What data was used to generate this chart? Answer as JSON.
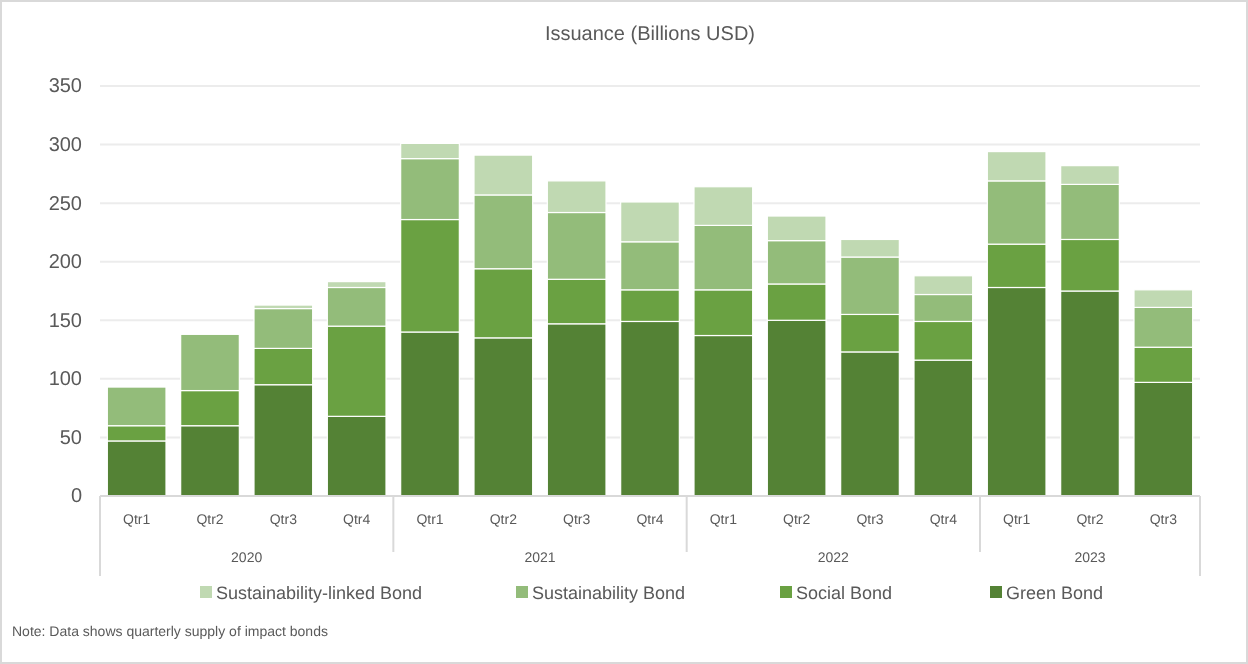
{
  "chart_data": {
    "type": "bar",
    "title": "Issuance (Billions USD)",
    "stacked": true,
    "grid": "y",
    "legend": "bottom",
    "categories": [
      "Qtr1",
      "Qtr2",
      "Qtr3",
      "Qtr4",
      "Qtr1",
      "Qtr2",
      "Qtr3",
      "Qtr4",
      "Qtr1",
      "Qtr2",
      "Qtr3",
      "Qtr4",
      "Qtr1",
      "Qtr2",
      "Qtr3"
    ],
    "ylim": [
      0,
      350
    ],
    "yticks": [
      0,
      50,
      100,
      150,
      200,
      250,
      300,
      350
    ],
    "series": [
      {
        "name": "Green Bond",
        "color": "#548235",
        "values": [
          47,
          60,
          95,
          68,
          140,
          135,
          147,
          149,
          137,
          150,
          123,
          116,
          178,
          175,
          97
        ]
      },
      {
        "name": "Social Bond",
        "color": "#6aa142",
        "values": [
          13,
          30,
          31,
          77,
          96,
          59,
          38,
          27,
          39,
          31,
          32,
          33,
          37,
          44,
          30
        ]
      },
      {
        "name": "Sustainability Bond",
        "color": "#93bc7a",
        "values": [
          33,
          48,
          34,
          33,
          52,
          63,
          57,
          41,
          55,
          37,
          49,
          23,
          54,
          47,
          34
        ]
      },
      {
        "name": "Sustainability-linked Bond",
        "color": "#c0d9b2",
        "values": [
          0,
          0,
          3,
          5,
          13,
          34,
          27,
          34,
          33,
          21,
          15,
          16,
          25,
          16,
          15
        ]
      }
    ],
    "annotations": [
      "2020",
      "2021",
      "2022",
      "2023",
      "Note: Data shows quarterly supply of impact bonds"
    ]
  }
}
